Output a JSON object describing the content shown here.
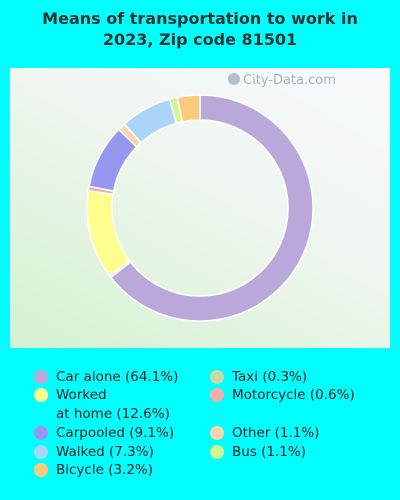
{
  "title_line1": "Means of transportation to work in",
  "title_line2": "2023, Zip code 81501",
  "watermark": "City-Data.com",
  "chart_data": {
    "type": "pie",
    "title": "Means of transportation to work in 2023, Zip code 81501",
    "donut": true,
    "slices": [
      {
        "label": "Car alone",
        "value": 64.1,
        "display": "Car alone (64.1%)",
        "color": "#bba8da"
      },
      {
        "label": "Taxi",
        "value": 0.3,
        "display": "Taxi (0.3%)",
        "color": "#c5dba8"
      },
      {
        "label": "Worked at home",
        "value": 12.6,
        "display_line1": "Worked",
        "display_line2": "at home (12.6%)",
        "color": "#fdfe8e"
      },
      {
        "label": "Motorcycle",
        "value": 0.6,
        "display": "Motorcycle (0.6%)",
        "color": "#eeaeae"
      },
      {
        "label": "Carpooled",
        "value": 9.1,
        "display": "Carpooled (9.1%)",
        "color": "#9697ef"
      },
      {
        "label": "Other",
        "value": 1.1,
        "display": "Other (1.1%)",
        "color": "#fcd5b0"
      },
      {
        "label": "Walked",
        "value": 7.3,
        "display": "Walked (7.3%)",
        "color": "#aad4f9"
      },
      {
        "label": "Bus",
        "value": 1.1,
        "display": "Bus (1.1%)",
        "color": "#d4f68e"
      },
      {
        "label": "Bicycle",
        "value": 3.2,
        "display": "Bicycle (3.2%)",
        "color": "#fdca7d"
      }
    ],
    "legend_placement": "bottom"
  }
}
